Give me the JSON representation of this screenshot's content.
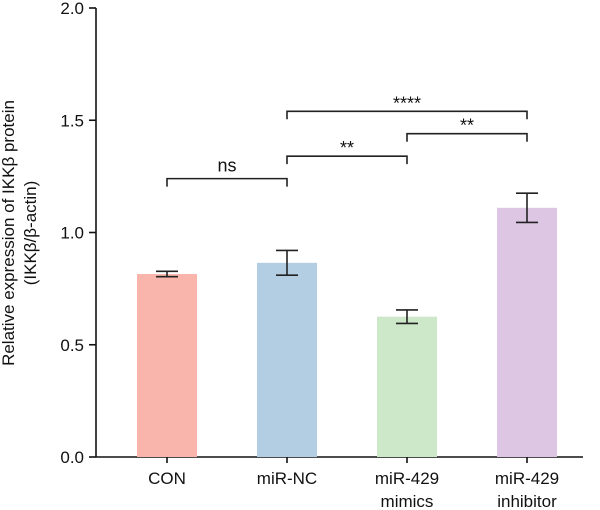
{
  "chart_data": {
    "type": "bar",
    "ylabel_line1": "Relative expression of IKKβ protein",
    "ylabel_line2": "(IKKβ/β-actin)",
    "ylim": [
      0,
      2.0
    ],
    "yticks": [
      0.0,
      0.5,
      1.0,
      1.5,
      2.0
    ],
    "ytick_labels": [
      "0.0",
      "0.5",
      "1.0",
      "1.5",
      "2.0"
    ],
    "categories": [
      {
        "lines": [
          "CON"
        ]
      },
      {
        "lines": [
          "miR-NC"
        ]
      },
      {
        "lines": [
          "miR-429",
          "mimics"
        ]
      },
      {
        "lines": [
          "miR-429",
          "inhibitor"
        ]
      }
    ],
    "values": [
      0.815,
      0.865,
      0.625,
      1.11
    ],
    "errors": [
      0.012,
      0.055,
      0.03,
      0.065
    ],
    "colors": [
      "#f9b4ab",
      "#b3cde3",
      "#cce8c8",
      "#dcc6e4"
    ],
    "significance": [
      {
        "from": 0,
        "to": 1,
        "y": 1.24,
        "label": "ns"
      },
      {
        "from": 1,
        "to": 2,
        "y": 1.34,
        "label": "**"
      },
      {
        "from": 2,
        "to": 3,
        "y": 1.44,
        "label": "**"
      },
      {
        "from": 1,
        "to": 3,
        "y": 1.54,
        "label": "****"
      }
    ]
  }
}
